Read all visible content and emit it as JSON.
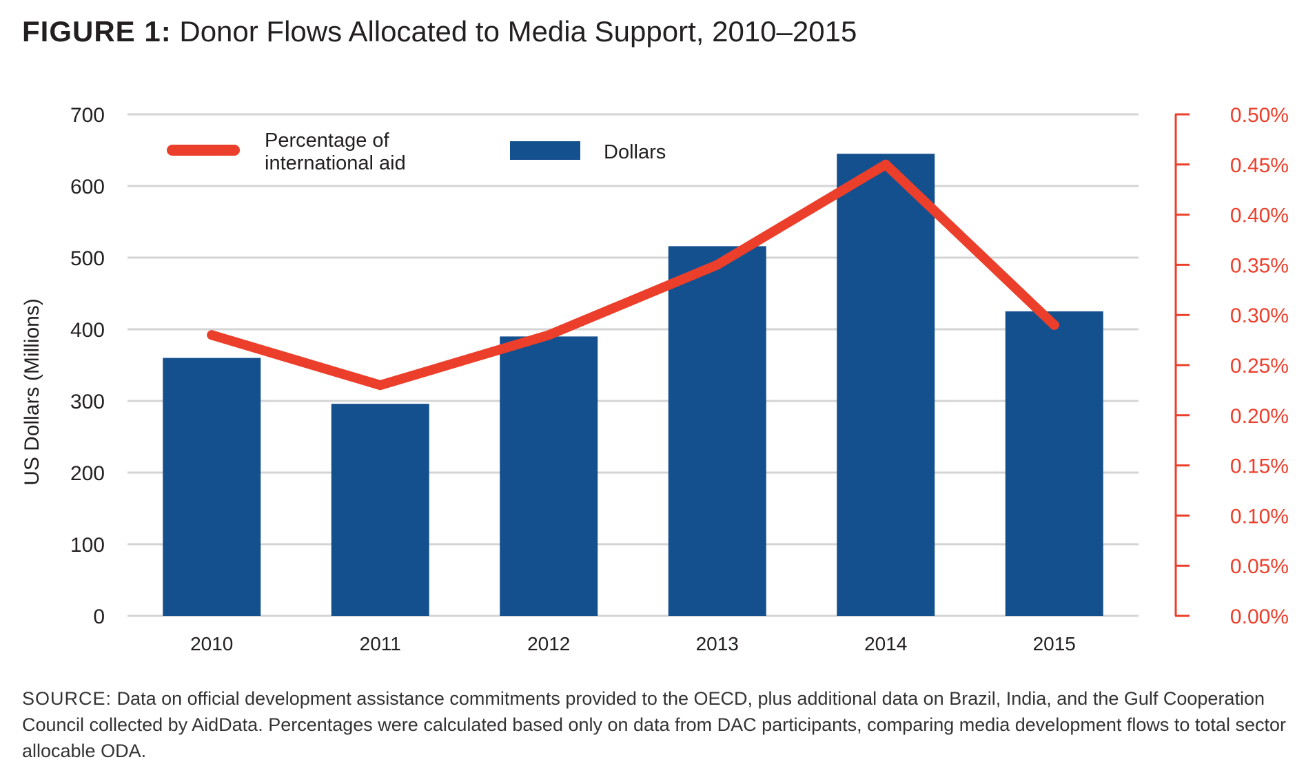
{
  "figure": {
    "label": "FIGURE 1:",
    "title": "Donor Flows Allocated to Media Support, 2010–2015"
  },
  "source": {
    "label": "SOURCE:",
    "text": "Data on official development assistance commitments provided to the OECD, plus additional data on Brazil, India, and the Gulf Cooperation Council collected by AidData. Percentages were calculated based only on data from DAC participants, comparing media development flows to total sector allocable ODA."
  },
  "colors": {
    "bar": "#15508e",
    "line": "#ec3f2b",
    "grid": "#d4d4d4",
    "text": "#231f20"
  },
  "chart_data": {
    "type": "bar",
    "title": "Donor Flows Allocated to Media Support, 2010–2015",
    "categories": [
      "2010",
      "2011",
      "2012",
      "2013",
      "2014",
      "2015"
    ],
    "xlabel": "",
    "ylabel": "US Dollars (Millions)",
    "ylim": [
      0,
      700
    ],
    "yticks": [
      "0",
      "100",
      "200",
      "300",
      "400",
      "500",
      "600",
      "700"
    ],
    "y2lim": [
      0,
      0.5
    ],
    "y2ticks": [
      "0.00%",
      "0.05%",
      "0.10%",
      "0.15%",
      "0.20%",
      "0.25%",
      "0.30%",
      "0.35%",
      "0.40%",
      "0.45%",
      "0.50%"
    ],
    "grid": true,
    "legend_position": "top-left",
    "series": [
      {
        "name": "Dollars",
        "type": "bar",
        "axis": "left",
        "values": [
          360,
          296,
          390,
          516,
          645,
          425
        ]
      },
      {
        "name": "Percentage of international aid",
        "legend_lines": [
          "Percentage of",
          "international aid"
        ],
        "type": "line",
        "axis": "right",
        "values": [
          0.28,
          0.23,
          0.28,
          0.35,
          0.45,
          0.29
        ]
      }
    ]
  }
}
